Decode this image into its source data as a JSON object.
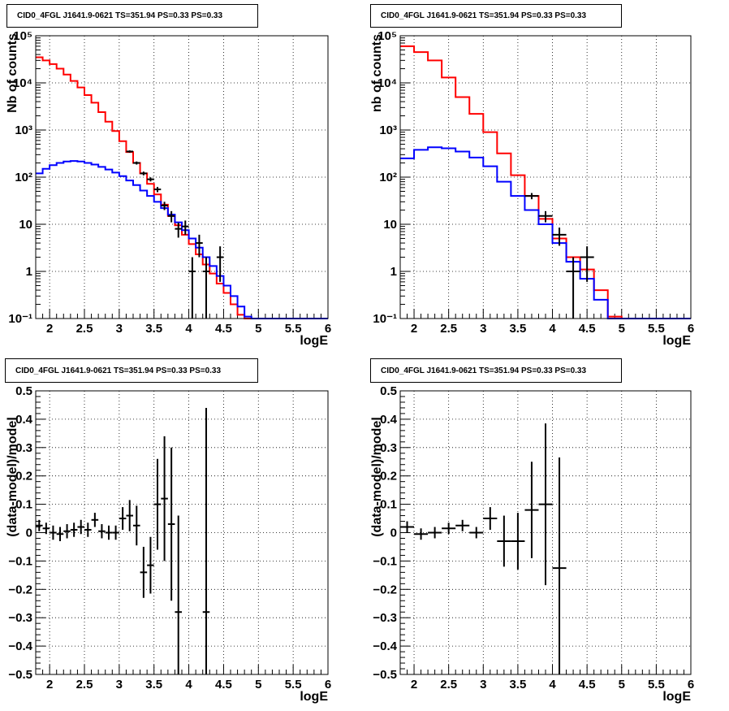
{
  "chart_data": [
    {
      "type": "line",
      "title": "CID0_4FGL J1641.9-0621 TS=351.94 PS=0.33 PS=0.33",
      "xlabel": "logE",
      "ylabel": "Nb of counts",
      "xlim": [
        1.8,
        6.0
      ],
      "ylim": [
        0.1,
        100000
      ],
      "yscale": "log",
      "grid": true,
      "x_ticks": [
        {
          "v": 2,
          "label": "2"
        },
        {
          "v": 2.5,
          "label": "2.5"
        },
        {
          "v": 3,
          "label": "3"
        },
        {
          "v": 3.5,
          "label": "3.5"
        },
        {
          "v": 4,
          "label": "4"
        },
        {
          "v": 4.5,
          "label": "4.5"
        },
        {
          "v": 5,
          "label": "5"
        },
        {
          "v": 5.5,
          "label": "5.5"
        },
        {
          "v": 6,
          "label": "6"
        }
      ],
      "y_ticks": [
        {
          "v": 0.1,
          "label": "10⁻¹"
        },
        {
          "v": 1,
          "label": "1"
        },
        {
          "v": 10,
          "label": "10"
        },
        {
          "v": 100,
          "label": "10²"
        },
        {
          "v": 1000,
          "label": "10³"
        },
        {
          "v": 10000,
          "label": "10⁴"
        },
        {
          "v": 100000,
          "label": "10⁵"
        }
      ],
      "bin_edges": [
        1.8,
        1.9,
        2.0,
        2.1,
        2.2,
        2.3,
        2.4,
        2.5,
        2.6,
        2.7,
        2.8,
        2.9,
        3.0,
        3.1,
        3.2,
        3.3,
        3.4,
        3.5,
        3.6,
        3.7,
        3.8,
        3.9,
        4.0,
        4.1,
        4.2,
        4.3,
        4.4,
        4.5,
        4.6,
        4.7,
        4.8,
        4.9,
        5.0,
        5.1,
        5.2,
        5.3,
        5.4,
        5.5,
        5.6,
        5.7,
        5.8,
        5.9,
        6.0
      ],
      "series": [
        {
          "color": "#ff0000",
          "values": [
            35000,
            30000,
            25000,
            20000,
            15000,
            11000,
            8000,
            5500,
            3800,
            2400,
            1500,
            950,
            580,
            340,
            200,
            120,
            72,
            43,
            26,
            15,
            9.5,
            6,
            3.8,
            2.3,
            1.4,
            0.9,
            0.55,
            0.35,
            0.2,
            0.12,
            0.1,
            0.1,
            0.1,
            0.1,
            0.1,
            0.1,
            0.1,
            0.1,
            0.1,
            0.1,
            0.1,
            0.1
          ]
        },
        {
          "color": "#0000ff",
          "values": [
            120,
            150,
            180,
            200,
            215,
            220,
            215,
            200,
            185,
            165,
            145,
            125,
            105,
            85,
            68,
            52,
            40,
            30,
            22,
            16,
            11,
            7.5,
            5,
            3.2,
            2,
            1.3,
            0.8,
            0.5,
            0.3,
            0.18,
            0.11,
            0.1,
            0.1,
            0.1,
            0.1,
            0.1,
            0.1,
            0.1,
            0.1,
            0.1,
            0.1,
            0.1
          ]
        }
      ],
      "points": [
        {
          "x": 3.15,
          "y": 350,
          "yerr": 20,
          "xerr": 0.05
        },
        {
          "x": 3.25,
          "y": 200,
          "yerr": 15,
          "xerr": 0.05
        },
        {
          "x": 3.35,
          "y": 120,
          "yerr": 11,
          "xerr": 0.05
        },
        {
          "x": 3.45,
          "y": 90,
          "yerr": 9,
          "xerr": 0.05
        },
        {
          "x": 3.55,
          "y": 55,
          "yerr": 7,
          "xerr": 0.05
        },
        {
          "x": 3.65,
          "y": 25,
          "yerr": 5,
          "xerr": 0.05
        },
        {
          "x": 3.75,
          "y": 15,
          "yerr": 4,
          "xerr": 0.05
        },
        {
          "x": 3.85,
          "y": 8,
          "yerr": 2.8,
          "xerr": 0.05
        },
        {
          "x": 3.95,
          "y": 9,
          "yerr": 3,
          "xerr": 0.05
        },
        {
          "x": 4.05,
          "y": 1,
          "yerr": 1,
          "xerr": 0.05
        },
        {
          "x": 4.15,
          "y": 4,
          "yerr": 2,
          "xerr": 0.05
        },
        {
          "x": 4.25,
          "y": 1,
          "yerr": 1,
          "xerr": 0.05
        },
        {
          "x": 4.45,
          "y": 2,
          "yerr": 1.4,
          "xerr": 0.05
        }
      ]
    },
    {
      "type": "line",
      "title": "CID0_4FGL J1641.9-0621 TS=351.94 PS=0.33 PS=0.33",
      "xlabel": "logE",
      "ylabel": "nb of counts",
      "xlim": [
        1.8,
        6.0
      ],
      "ylim": [
        0.1,
        100000
      ],
      "yscale": "log",
      "grid": true,
      "x_ticks": [
        {
          "v": 2,
          "label": "2"
        },
        {
          "v": 2.5,
          "label": "2.5"
        },
        {
          "v": 3,
          "label": "3"
        },
        {
          "v": 3.5,
          "label": "3.5"
        },
        {
          "v": 4,
          "label": "4"
        },
        {
          "v": 4.5,
          "label": "4.5"
        },
        {
          "v": 5,
          "label": "5"
        },
        {
          "v": 5.5,
          "label": "5.5"
        },
        {
          "v": 6,
          "label": "6"
        }
      ],
      "y_ticks": [
        {
          "v": 0.1,
          "label": "10⁻¹"
        },
        {
          "v": 1,
          "label": "1"
        },
        {
          "v": 10,
          "label": "10"
        },
        {
          "v": 100,
          "label": "10²"
        },
        {
          "v": 1000,
          "label": "10³"
        },
        {
          "v": 10000,
          "label": "10⁴"
        },
        {
          "v": 100000,
          "label": "10⁵"
        }
      ],
      "bin_edges": [
        1.8,
        2.0,
        2.2,
        2.4,
        2.6,
        2.8,
        3.0,
        3.2,
        3.4,
        3.6,
        3.8,
        4.0,
        4.2,
        4.4,
        4.6,
        4.8,
        5.0,
        5.2,
        5.4,
        5.6,
        5.8,
        6.0
      ],
      "series": [
        {
          "color": "#ff0000",
          "values": [
            60000,
            45000,
            30000,
            13000,
            5000,
            2200,
            900,
            320,
            110,
            40,
            13,
            5,
            2,
            1.1,
            0.4,
            0.11,
            0.1,
            0.1,
            0.1,
            0.1,
            0.1
          ]
        },
        {
          "color": "#0000ff",
          "values": [
            250,
            380,
            430,
            410,
            350,
            260,
            170,
            80,
            40,
            20,
            10,
            4,
            1.6,
            0.7,
            0.25,
            0.1,
            0.1,
            0.1,
            0.1,
            0.1,
            0.1
          ]
        }
      ],
      "points": [
        {
          "x": 3.7,
          "y": 40,
          "yerr": 6,
          "xerr": 0.1
        },
        {
          "x": 3.9,
          "y": 15,
          "yerr": 4,
          "xerr": 0.1
        },
        {
          "x": 4.1,
          "y": 6,
          "yerr": 2.5,
          "xerr": 0.1
        },
        {
          "x": 4.3,
          "y": 1,
          "yerr": 1,
          "xerr": 0.1
        },
        {
          "x": 4.5,
          "y": 2,
          "yerr": 1.4,
          "xerr": 0.1
        }
      ]
    },
    {
      "type": "scatter",
      "title": "CID0_4FGL J1641.9-0621 TS=351.94 PS=0.33 PS=0.33",
      "xlabel": "logE",
      "ylabel": "(data-model)/model",
      "xlim": [
        1.8,
        6.0
      ],
      "ylim": [
        -0.5,
        0.5
      ],
      "yscale": "linear",
      "grid": true,
      "x_ticks": [
        {
          "v": 2,
          "label": "2"
        },
        {
          "v": 2.5,
          "label": "2.5"
        },
        {
          "v": 3,
          "label": "3"
        },
        {
          "v": 3.5,
          "label": "3.5"
        },
        {
          "v": 4,
          "label": "4"
        },
        {
          "v": 4.5,
          "label": "4.5"
        },
        {
          "v": 5,
          "label": "5"
        },
        {
          "v": 5.5,
          "label": "5.5"
        },
        {
          "v": 6,
          "label": "6"
        }
      ],
      "y_ticks": [
        {
          "v": -0.5,
          "label": "−0.5"
        },
        {
          "v": -0.4,
          "label": "−0.4"
        },
        {
          "v": -0.3,
          "label": "−0.3"
        },
        {
          "v": -0.2,
          "label": "−0.2"
        },
        {
          "v": -0.1,
          "label": "−0.1"
        },
        {
          "v": 0,
          "label": "0"
        },
        {
          "v": 0.1,
          "label": "0.1"
        },
        {
          "v": 0.2,
          "label": "0.2"
        },
        {
          "v": 0.3,
          "label": "0.3"
        },
        {
          "v": 0.4,
          "label": "0.4"
        },
        {
          "v": 0.5,
          "label": "0.5"
        }
      ],
      "points": [
        {
          "x": 1.85,
          "y": 0.025,
          "yerr": 0.02,
          "xerr": 0.05
        },
        {
          "x": 1.95,
          "y": 0.015,
          "yerr": 0.02,
          "xerr": 0.05
        },
        {
          "x": 2.05,
          "y": 0.0,
          "yerr": 0.025,
          "xerr": 0.05
        },
        {
          "x": 2.15,
          "y": -0.005,
          "yerr": 0.025,
          "xerr": 0.05
        },
        {
          "x": 2.25,
          "y": 0.005,
          "yerr": 0.025,
          "xerr": 0.05
        },
        {
          "x": 2.35,
          "y": 0.01,
          "yerr": 0.025,
          "xerr": 0.05
        },
        {
          "x": 2.45,
          "y": 0.02,
          "yerr": 0.025,
          "xerr": 0.05
        },
        {
          "x": 2.55,
          "y": 0.01,
          "yerr": 0.025,
          "xerr": 0.05
        },
        {
          "x": 2.65,
          "y": 0.045,
          "yerr": 0.025,
          "xerr": 0.05
        },
        {
          "x": 2.75,
          "y": 0.005,
          "yerr": 0.025,
          "xerr": 0.05
        },
        {
          "x": 2.85,
          "y": 0.0,
          "yerr": 0.025,
          "xerr": 0.05
        },
        {
          "x": 2.95,
          "y": 0.0,
          "yerr": 0.025,
          "xerr": 0.05
        },
        {
          "x": 3.05,
          "y": 0.05,
          "yerr": 0.04,
          "xerr": 0.05
        },
        {
          "x": 3.15,
          "y": 0.06,
          "yerr": 0.055,
          "xerr": 0.05
        },
        {
          "x": 3.25,
          "y": 0.025,
          "yerr": 0.07,
          "xerr": 0.05
        },
        {
          "x": 3.35,
          "y": -0.14,
          "yerr": 0.09,
          "xerr": 0.05
        },
        {
          "x": 3.45,
          "y": -0.115,
          "yerr": 0.1,
          "xerr": 0.05
        },
        {
          "x": 3.55,
          "y": 0.1,
          "yerr": 0.16,
          "xerr": 0.05
        },
        {
          "x": 3.65,
          "y": 0.12,
          "yerr": 0.22,
          "xerr": 0.05
        },
        {
          "x": 3.75,
          "y": 0.03,
          "yerr": 0.27,
          "xerr": 0.05
        },
        {
          "x": 3.85,
          "y": -0.28,
          "yerr": 0.34,
          "xerr": 0.05
        },
        {
          "x": 4.25,
          "y": -0.28,
          "yerr": 0.72,
          "xerr": 0.05
        }
      ]
    },
    {
      "type": "scatter",
      "title": "CID0_4FGL J1641.9-0621 TS=351.94 PS=0.33 PS=0.33",
      "xlabel": "logE",
      "ylabel": "(data-model)/model",
      "xlim": [
        1.8,
        6.0
      ],
      "ylim": [
        -0.5,
        0.5
      ],
      "yscale": "linear",
      "grid": true,
      "x_ticks": [
        {
          "v": 2,
          "label": "2"
        },
        {
          "v": 2.5,
          "label": "2.5"
        },
        {
          "v": 3,
          "label": "3"
        },
        {
          "v": 3.5,
          "label": "3.5"
        },
        {
          "v": 4,
          "label": "4"
        },
        {
          "v": 4.5,
          "label": "4.5"
        },
        {
          "v": 5,
          "label": "5"
        },
        {
          "v": 5.5,
          "label": "5.5"
        },
        {
          "v": 6,
          "label": "6"
        }
      ],
      "y_ticks": [
        {
          "v": -0.5,
          "label": "−0.5"
        },
        {
          "v": -0.4,
          "label": "−0.4"
        },
        {
          "v": -0.3,
          "label": "−0.3"
        },
        {
          "v": -0.2,
          "label": "−0.2"
        },
        {
          "v": -0.1,
          "label": "−0.1"
        },
        {
          "v": 0,
          "label": "0"
        },
        {
          "v": 0.1,
          "label": "0.1"
        },
        {
          "v": 0.2,
          "label": "0.2"
        },
        {
          "v": 0.3,
          "label": "0.3"
        },
        {
          "v": 0.4,
          "label": "0.4"
        },
        {
          "v": 0.5,
          "label": "0.5"
        }
      ],
      "points": [
        {
          "x": 1.9,
          "y": 0.02,
          "yerr": 0.02,
          "xerr": 0.1
        },
        {
          "x": 2.1,
          "y": -0.005,
          "yerr": 0.02,
          "xerr": 0.1
        },
        {
          "x": 2.3,
          "y": 0.0,
          "yerr": 0.02,
          "xerr": 0.1
        },
        {
          "x": 2.5,
          "y": 0.015,
          "yerr": 0.02,
          "xerr": 0.1
        },
        {
          "x": 2.7,
          "y": 0.025,
          "yerr": 0.02,
          "xerr": 0.1
        },
        {
          "x": 2.9,
          "y": 0.0,
          "yerr": 0.02,
          "xerr": 0.1
        },
        {
          "x": 3.1,
          "y": 0.05,
          "yerr": 0.04,
          "xerr": 0.1
        },
        {
          "x": 3.3,
          "y": -0.03,
          "yerr": 0.09,
          "xerr": 0.1
        },
        {
          "x": 3.5,
          "y": -0.03,
          "yerr": 0.1,
          "xerr": 0.1
        },
        {
          "x": 3.7,
          "y": 0.08,
          "yerr": 0.17,
          "xerr": 0.1
        },
        {
          "x": 3.9,
          "y": 0.1,
          "yerr": 0.285,
          "xerr": 0.1
        },
        {
          "x": 4.1,
          "y": -0.125,
          "yerr": 0.39,
          "xerr": 0.1
        }
      ]
    }
  ]
}
